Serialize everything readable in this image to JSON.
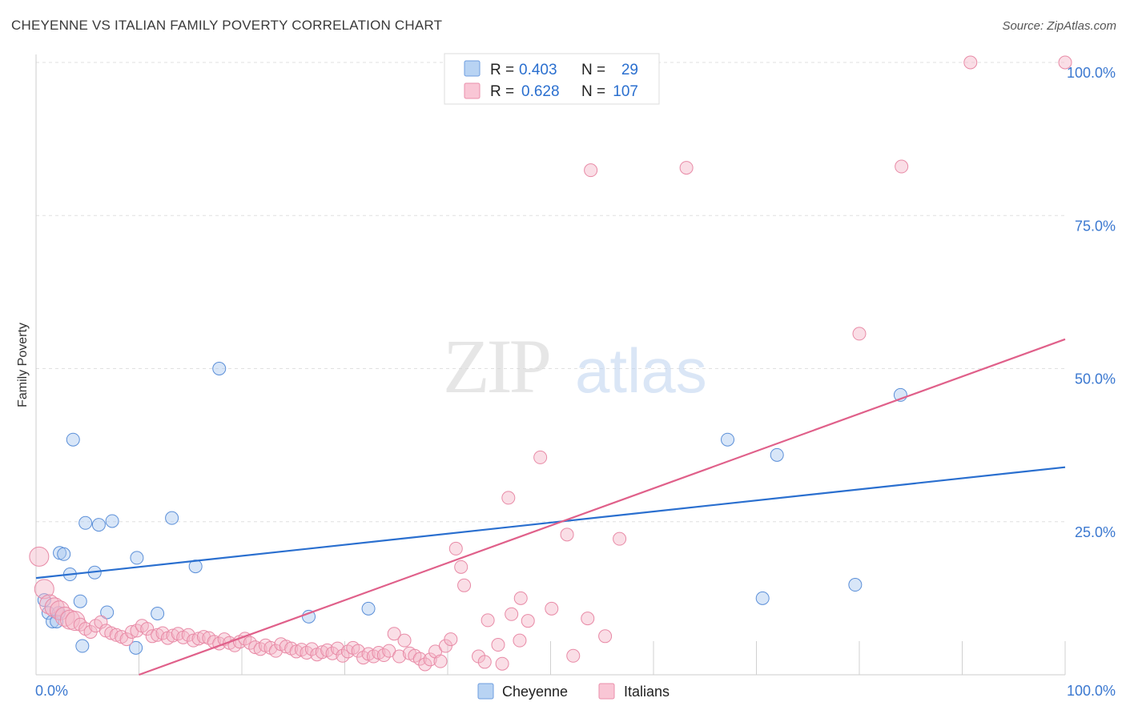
{
  "header": {
    "title": "CHEYENNE VS ITALIAN FAMILY POVERTY CORRELATION CHART",
    "source": "Source: ZipAtlas.com"
  },
  "watermark": {
    "zip": "ZIP",
    "atlas": "atlas"
  },
  "legend_stats": [
    {
      "r_label": "R = ",
      "r_value": "0.403",
      "n_label": "N = ",
      "n_value": "29",
      "color": "#a8c8f0"
    },
    {
      "r_label": "R = ",
      "r_value": "0.628",
      "n_label": "N = ",
      "n_value": "107",
      "color": "#f5b6c8"
    }
  ],
  "chart_data": {
    "type": "scatter",
    "title": "CHEYENNE VS ITALIAN FAMILY POVERTY CORRELATION CHART",
    "xlabel": "",
    "ylabel": "Family Poverty",
    "xlim": [
      0,
      100
    ],
    "ylim": [
      0,
      100
    ],
    "x_tick_labels": [
      "0.0%",
      "100.0%"
    ],
    "y_tick_labels": [
      "25.0%",
      "50.0%",
      "75.0%",
      "100.0%"
    ],
    "y_ticks": [
      25,
      50,
      75,
      100
    ],
    "grid": true,
    "legend_position": "bottom",
    "series": [
      {
        "name": "Cheyenne",
        "color": "#a8c8f0",
        "stroke": "#5b8fd8",
        "line_color": "#2a6fcf",
        "trend": {
          "x": [
            0,
            100
          ],
          "y": [
            15.8,
            33.9
          ]
        },
        "points": [
          [
            0.8,
            12.2
          ],
          [
            1.2,
            10.1
          ],
          [
            1.6,
            8.7
          ],
          [
            2.2,
            10.1
          ],
          [
            2.0,
            8.7
          ],
          [
            2.3,
            19.9
          ],
          [
            2.7,
            19.7
          ],
          [
            3.3,
            16.4
          ],
          [
            3.6,
            38.4
          ],
          [
            4.3,
            12.0
          ],
          [
            4.5,
            4.7
          ],
          [
            4.8,
            24.8
          ],
          [
            5.7,
            16.7
          ],
          [
            6.1,
            24.5
          ],
          [
            6.9,
            10.2
          ],
          [
            7.4,
            25.1
          ],
          [
            9.7,
            4.4
          ],
          [
            9.8,
            19.1
          ],
          [
            11.8,
            10.0
          ],
          [
            13.2,
            25.6
          ],
          [
            15.5,
            17.7
          ],
          [
            17.8,
            50.0
          ],
          [
            26.5,
            9.5
          ],
          [
            32.3,
            10.8
          ],
          [
            67.2,
            38.4
          ],
          [
            70.6,
            12.5
          ],
          [
            72.0,
            35.9
          ],
          [
            79.6,
            14.7
          ],
          [
            84.0,
            45.7
          ]
        ]
      },
      {
        "name": "Italians",
        "color": "#f5b6c8",
        "stroke": "#e88aa6",
        "line_color": "#e0608a",
        "trend": {
          "x": [
            10,
            100
          ],
          "y": [
            0,
            54.8
          ]
        },
        "points": [
          [
            0.3,
            19.3
          ],
          [
            0.8,
            14.0
          ],
          [
            1.3,
            11.5
          ],
          [
            1.8,
            11.0
          ],
          [
            2.3,
            10.5
          ],
          [
            2.8,
            9.5
          ],
          [
            3.3,
            9.0
          ],
          [
            3.8,
            8.8
          ],
          [
            4.3,
            8.2
          ],
          [
            4.8,
            7.5
          ],
          [
            5.3,
            7.0
          ],
          [
            5.8,
            8.0
          ],
          [
            6.3,
            8.6
          ],
          [
            6.8,
            7.2
          ],
          [
            7.3,
            6.8
          ],
          [
            7.8,
            6.5
          ],
          [
            8.3,
            6.2
          ],
          [
            8.8,
            5.8
          ],
          [
            9.3,
            7.0
          ],
          [
            9.8,
            7.2
          ],
          [
            10.3,
            8.0
          ],
          [
            10.8,
            7.5
          ],
          [
            11.3,
            6.3
          ],
          [
            11.8,
            6.5
          ],
          [
            12.3,
            6.8
          ],
          [
            12.8,
            6.0
          ],
          [
            13.3,
            6.4
          ],
          [
            13.8,
            6.7
          ],
          [
            14.3,
            6.1
          ],
          [
            14.8,
            6.5
          ],
          [
            15.3,
            5.6
          ],
          [
            15.8,
            5.9
          ],
          [
            16.3,
            6.2
          ],
          [
            16.8,
            6.0
          ],
          [
            17.3,
            5.4
          ],
          [
            17.8,
            5.1
          ],
          [
            18.3,
            5.8
          ],
          [
            18.8,
            5.2
          ],
          [
            19.3,
            4.8
          ],
          [
            19.8,
            5.4
          ],
          [
            20.3,
            5.9
          ],
          [
            20.8,
            5.2
          ],
          [
            21.3,
            4.5
          ],
          [
            21.8,
            4.2
          ],
          [
            22.3,
            4.8
          ],
          [
            22.8,
            4.4
          ],
          [
            23.3,
            3.9
          ],
          [
            23.8,
            5.0
          ],
          [
            24.3,
            4.6
          ],
          [
            24.8,
            4.3
          ],
          [
            25.3,
            3.8
          ],
          [
            25.8,
            4.1
          ],
          [
            26.3,
            3.6
          ],
          [
            26.8,
            4.2
          ],
          [
            27.3,
            3.3
          ],
          [
            27.8,
            3.7
          ],
          [
            28.3,
            4.0
          ],
          [
            28.8,
            3.5
          ],
          [
            29.3,
            4.3
          ],
          [
            29.8,
            3.1
          ],
          [
            30.3,
            3.8
          ],
          [
            30.8,
            4.4
          ],
          [
            31.3,
            3.9
          ],
          [
            31.8,
            2.8
          ],
          [
            32.3,
            3.4
          ],
          [
            32.8,
            3.0
          ],
          [
            33.3,
            3.6
          ],
          [
            33.8,
            3.2
          ],
          [
            34.3,
            3.9
          ],
          [
            34.8,
            6.7
          ],
          [
            35.3,
            3.0
          ],
          [
            35.8,
            5.6
          ],
          [
            36.3,
            3.5
          ],
          [
            36.8,
            3.1
          ],
          [
            37.3,
            2.6
          ],
          [
            37.8,
            1.7
          ],
          [
            38.3,
            2.5
          ],
          [
            38.8,
            3.8
          ],
          [
            39.3,
            2.2
          ],
          [
            39.8,
            4.7
          ],
          [
            40.3,
            5.8
          ],
          [
            40.8,
            20.6
          ],
          [
            41.3,
            17.6
          ],
          [
            41.6,
            14.6
          ],
          [
            43.0,
            3.0
          ],
          [
            43.6,
            2.1
          ],
          [
            43.9,
            8.9
          ],
          [
            44.9,
            4.9
          ],
          [
            45.3,
            1.8
          ],
          [
            45.9,
            28.9
          ],
          [
            46.2,
            9.9
          ],
          [
            47.0,
            5.6
          ],
          [
            47.1,
            12.5
          ],
          [
            47.8,
            8.8
          ],
          [
            49.0,
            35.5
          ],
          [
            50.1,
            10.8
          ],
          [
            51.6,
            22.9
          ],
          [
            52.2,
            3.1
          ],
          [
            53.6,
            9.2
          ],
          [
            53.9,
            82.4
          ],
          [
            55.3,
            6.3
          ],
          [
            56.7,
            22.2
          ],
          [
            63.2,
            82.8
          ],
          [
            80.0,
            55.7
          ],
          [
            84.1,
            83.0
          ],
          [
            90.8,
            100.0
          ],
          [
            100.0,
            100.0
          ]
        ]
      }
    ]
  }
}
